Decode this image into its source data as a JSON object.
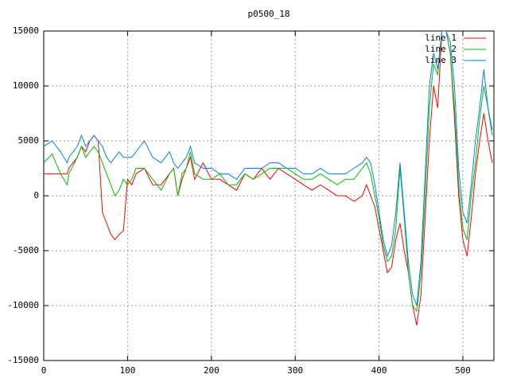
{
  "chart_data": {
    "type": "line",
    "title": "p0500_18",
    "x": [
      0,
      10,
      20,
      28,
      30,
      40,
      45,
      50,
      55,
      60,
      65,
      70,
      75,
      80,
      85,
      90,
      95,
      100,
      105,
      110,
      120,
      130,
      140,
      150,
      155,
      160,
      165,
      170,
      175,
      180,
      190,
      200,
      210,
      220,
      230,
      240,
      250,
      260,
      270,
      280,
      290,
      300,
      310,
      320,
      330,
      340,
      350,
      360,
      370,
      380,
      385,
      390,
      395,
      400,
      405,
      410,
      415,
      420,
      425,
      430,
      435,
      440,
      445,
      450,
      455,
      460,
      465,
      470,
      475,
      480,
      485,
      490,
      495,
      500,
      505,
      510,
      515,
      520,
      525,
      530,
      535
    ],
    "series": [
      {
        "name": "line 1",
        "color": "#ff0000",
        "values": [
          2000,
          2000,
          2000,
          2000,
          2500,
          3500,
          4500,
          4000,
          5000,
          5500,
          5000,
          -1500,
          -2500,
          -3500,
          -4000,
          -3500,
          -3200,
          1500,
          1000,
          2000,
          2500,
          1000,
          1000,
          2000,
          2500,
          0,
          1500,
          2500,
          3500,
          1500,
          3000,
          1500,
          1500,
          1000,
          500,
          2000,
          1500,
          2500,
          1500,
          2500,
          2000,
          1500,
          1000,
          500,
          1000,
          500,
          0,
          0,
          -500,
          0,
          1000,
          0,
          -1000,
          -3000,
          -5000,
          -7000,
          -6500,
          -4000,
          -2500,
          -5000,
          -7000,
          -10000,
          -11800,
          -9000,
          -2000,
          5000,
          10000,
          8000,
          15000,
          15000,
          13000,
          7000,
          0,
          -4000,
          -5500,
          -2000,
          2000,
          5000,
          7500,
          5000,
          3000
        ]
      },
      {
        "name": "line 2",
        "color": "#00c000",
        "values": [
          3000,
          3800,
          2000,
          1000,
          2000,
          3500,
          4500,
          3500,
          4000,
          4500,
          4000,
          3000,
          2000,
          1000,
          0,
          500,
          1500,
          1000,
          1500,
          2500,
          2500,
          1500,
          500,
          2000,
          2500,
          0,
          2000,
          2500,
          4000,
          2000,
          1500,
          1500,
          2000,
          1000,
          1000,
          2000,
          1500,
          2000,
          2500,
          2500,
          2500,
          2000,
          1500,
          1500,
          2000,
          1500,
          1000,
          1500,
          1500,
          2500,
          3000,
          2000,
          0,
          -2000,
          -4500,
          -6000,
          -5500,
          -3000,
          2500,
          -2000,
          -7000,
          -10000,
          -10500,
          -7000,
          0,
          8000,
          12000,
          11000,
          15000,
          15000,
          13000,
          8000,
          1000,
          -3000,
          -4000,
          0,
          3000,
          7000,
          10000,
          8000,
          5500
        ]
      },
      {
        "name": "line 3",
        "color": "#0080ff",
        "values": [
          4500,
          5000,
          4000,
          3000,
          3500,
          4500,
          5500,
          4500,
          5000,
          5500,
          5000,
          4500,
          3500,
          3000,
          3500,
          4000,
          3500,
          3500,
          3500,
          4000,
          5000,
          3500,
          3000,
          4000,
          3000,
          2500,
          3000,
          3500,
          4500,
          3000,
          2500,
          2500,
          2000,
          2000,
          1500,
          2500,
          2500,
          2500,
          3000,
          3000,
          2500,
          2500,
          2000,
          2000,
          2500,
          2000,
          2000,
          2000,
          2500,
          3000,
          3500,
          3000,
          1000,
          -1500,
          -4000,
          -5500,
          -4500,
          -1500,
          3000,
          -1500,
          -6000,
          -9000,
          -10000,
          -6000,
          2000,
          10000,
          13000,
          11500,
          15000,
          15000,
          14000,
          10000,
          2500,
          -1500,
          -2500,
          1000,
          5000,
          8000,
          11500,
          8000,
          6000
        ]
      }
    ],
    "xlim": [
      0,
      537
    ],
    "xticks": [
      0,
      100,
      200,
      300,
      400,
      500
    ],
    "ylim": [
      -15000,
      15000
    ],
    "yticks": [
      -15000,
      -10000,
      -5000,
      0,
      5000,
      10000,
      15000
    ],
    "grid": true,
    "legend": "top-right"
  }
}
